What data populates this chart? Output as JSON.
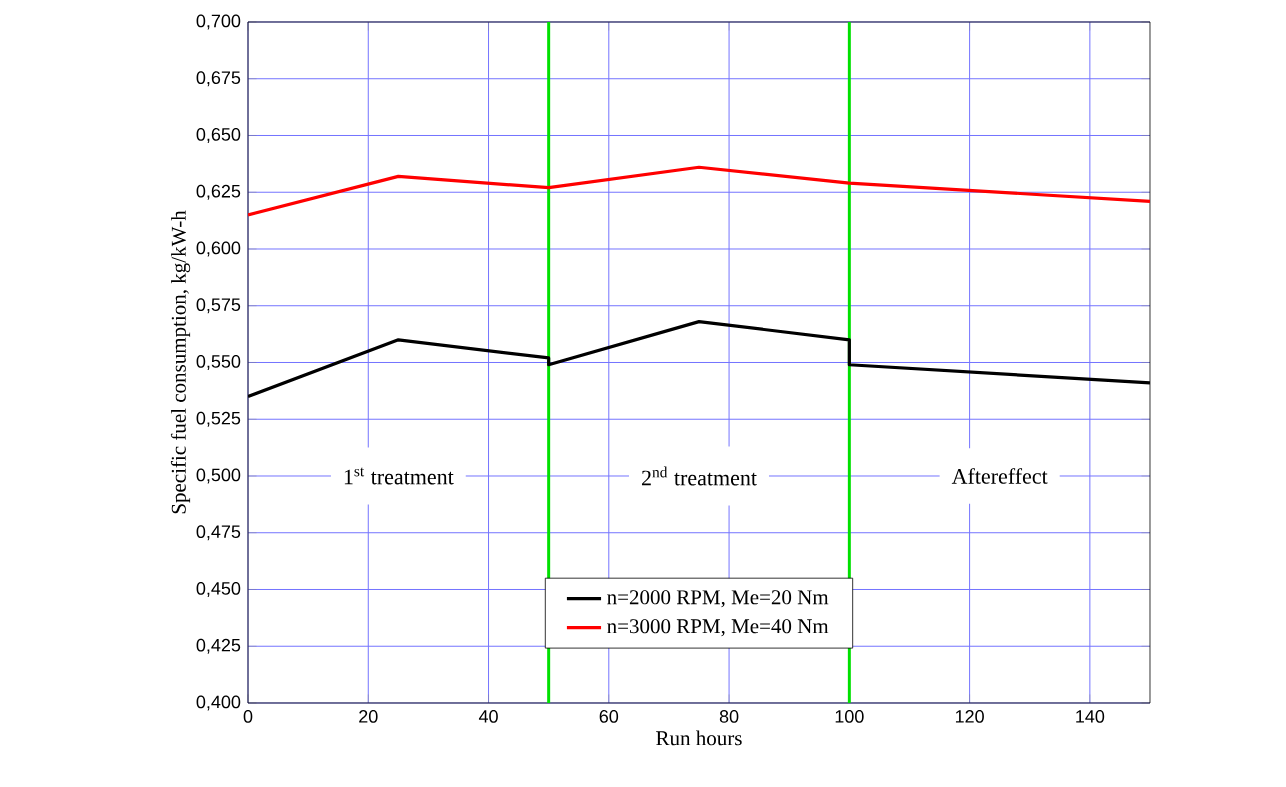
{
  "chart_data": {
    "type": "line",
    "xlabel": "Run hours",
    "ylabel": "Specific fuel consumption, kg/kW-h",
    "xlim": [
      0,
      150
    ],
    "ylim": [
      0.4,
      0.7
    ],
    "xticks": [
      0,
      20,
      40,
      60,
      80,
      100,
      120,
      140
    ],
    "yticks": [
      {
        "value": 0.4,
        "label": "0,400"
      },
      {
        "value": 0.425,
        "label": "0,425"
      },
      {
        "value": 0.45,
        "label": "0,450"
      },
      {
        "value": 0.475,
        "label": "0,475"
      },
      {
        "value": 0.5,
        "label": "0,500"
      },
      {
        "value": 0.525,
        "label": "0,525"
      },
      {
        "value": 0.55,
        "label": "0,550"
      },
      {
        "value": 0.575,
        "label": "0,575"
      },
      {
        "value": 0.6,
        "label": "0,600"
      },
      {
        "value": 0.625,
        "label": "0,625"
      },
      {
        "value": 0.65,
        "label": "0,650"
      },
      {
        "value": 0.675,
        "label": "0,675"
      },
      {
        "value": 0.7,
        "label": "0,700"
      }
    ],
    "series": [
      {
        "name": "n=2000 RPM, Me=20 Nm",
        "color": "#000000",
        "x": [
          0,
          25,
          50,
          50,
          75,
          100,
          100,
          150
        ],
        "values": [
          0.535,
          0.56,
          0.552,
          0.549,
          0.568,
          0.56,
          0.549,
          0.541
        ]
      },
      {
        "name": "n=3000 RPM, Me=40 Nm",
        "color": "#ff0000",
        "x": [
          0,
          25,
          50,
          75,
          100,
          150
        ],
        "values": [
          0.615,
          0.632,
          0.627,
          0.636,
          0.629,
          0.621
        ]
      }
    ],
    "ref_lines": [
      {
        "axis": "x",
        "value": 50,
        "color": "#00e000"
      },
      {
        "axis": "x",
        "value": 100,
        "color": "#00e000"
      }
    ],
    "annotations": [
      "1$^{st}$ treatment",
      "2$^{nd}$ treatment",
      "Aftereffect"
    ],
    "grid": true,
    "legend": "bottom",
    "marker": "none",
    "line_style": "solid"
  }
}
